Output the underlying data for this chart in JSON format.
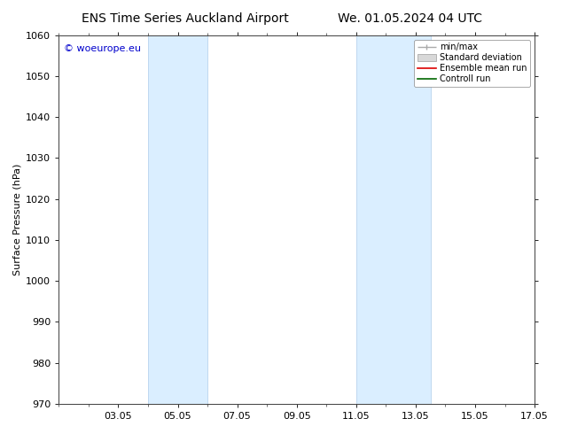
{
  "title_left": "ENS Time Series Auckland Airport",
  "title_right": "We. 01.05.2024 04 UTC",
  "ylabel": "Surface Pressure (hPa)",
  "ylim": [
    970,
    1060
  ],
  "yticks": [
    970,
    980,
    990,
    1000,
    1010,
    1020,
    1030,
    1040,
    1050,
    1060
  ],
  "xlim": [
    1.0,
    17.0
  ],
  "xtick_labels": [
    "03.05",
    "05.05",
    "07.05",
    "09.05",
    "11.05",
    "13.05",
    "15.05",
    "17.05"
  ],
  "xtick_positions": [
    3.0,
    5.0,
    7.0,
    9.0,
    11.0,
    13.0,
    15.0,
    17.0
  ],
  "shaded_bands": [
    {
      "xmin": 4.0,
      "xmax": 6.0,
      "color": "#daeeff"
    },
    {
      "xmin": 11.0,
      "xmax": 13.5,
      "color": "#daeeff"
    }
  ],
  "vertical_lines": [
    {
      "x": 4.0,
      "color": "#c0d8f0"
    },
    {
      "x": 6.0,
      "color": "#c0d8f0"
    },
    {
      "x": 11.0,
      "color": "#c0d8f0"
    },
    {
      "x": 13.5,
      "color": "#c0d8f0"
    }
  ],
  "watermark_text": "© woeurope.eu",
  "watermark_color": "#0000cc",
  "watermark_fontsize": 8,
  "bg_color": "#ffffff",
  "title_fontsize": 10,
  "axis_fontsize": 8,
  "tick_fontsize": 8
}
